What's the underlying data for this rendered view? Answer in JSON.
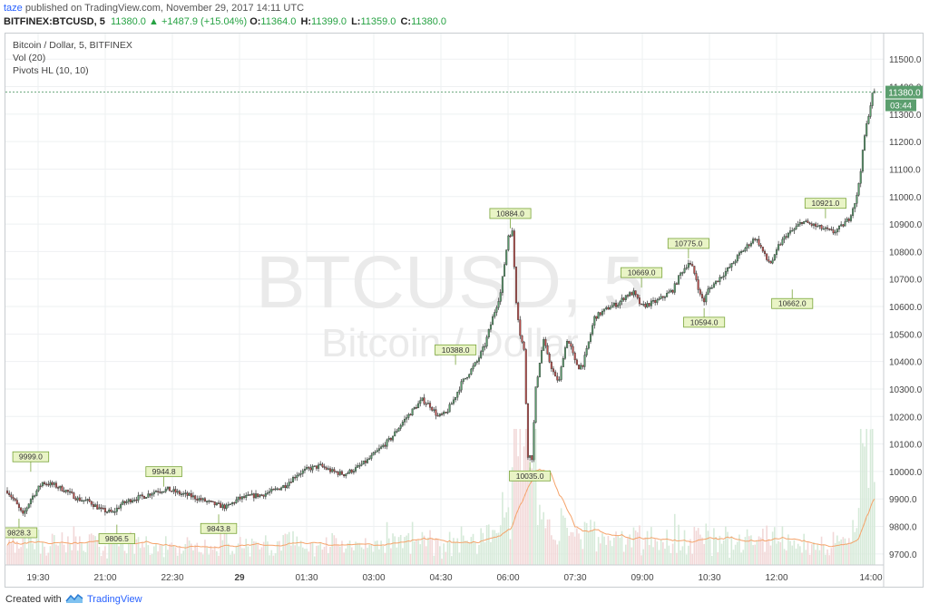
{
  "header": {
    "user": "taze",
    "published_text": "published on TradingView.com, November 29, 2017 14:11 UTC",
    "symbol": "BITFINEX:BTCUSD, 5",
    "last": "11380.0",
    "arrow": "▲",
    "change": "+1487.9 (+15.04%)",
    "o_label": "O:",
    "o_value": "11364.0",
    "h_label": "H:",
    "h_value": "11399.0",
    "l_label": "L:",
    "l_value": "11359.0",
    "c_label": "C:",
    "c_value": "11380.0"
  },
  "legend": {
    "title": "Bitcoin / Dollar, 5, BITFINEX",
    "vol": "Vol (20)",
    "pivots": "Pivots HL (10, 10)"
  },
  "watermark": {
    "main": "BTCUSD, 5",
    "sub": "Bitcoin / Dollar"
  },
  "footer": {
    "created": "Created with",
    "brand": "TradingView"
  },
  "colors": {
    "up": "#5b9e6e",
    "down": "#c0504d",
    "vol_up": "#d6ead9",
    "vol_down": "#f2d8d8",
    "ma": "#f5a36a",
    "label_bg": "#e9f4c6",
    "label_border": "#7aa53a"
  },
  "chart_data": {
    "type": "candlestick",
    "title": "Bitcoin / Dollar, 5, BITFINEX",
    "x_ticks": [
      "19:30",
      "21:00",
      "22:30",
      "29",
      "01:30",
      "03:00",
      "04:30",
      "06:00",
      "07:30",
      "09:00",
      "10:30",
      "12:00",
      "14:00"
    ],
    "y_ticks": [
      9700,
      9800,
      9900,
      10000,
      10100,
      10200,
      10300,
      10400,
      10500,
      10600,
      10700,
      10800,
      10900,
      11000,
      11100,
      11200,
      11300,
      11400,
      11500
    ],
    "y_tick_labels": [
      "9700.0",
      "9800.0",
      "9900.0",
      "10000.0",
      "10100.0",
      "10200.0",
      "10300.0",
      "10400.0",
      "10500.0",
      "10600.0",
      "10700.0",
      "10800.0",
      "10900.0",
      "11000.0",
      "11100.0",
      "11200.0",
      "11300.0",
      "11400.0",
      "11500.0"
    ],
    "ylim": [
      9660,
      11560
    ],
    "last_price": 11380.0,
    "last_price_label": "11380.0",
    "countdown_label": "03:44",
    "close_path": [
      [
        0,
        9930
      ],
      [
        4,
        9890
      ],
      [
        8,
        9840
      ],
      [
        12,
        9900
      ],
      [
        18,
        9960
      ],
      [
        24,
        9950
      ],
      [
        30,
        9930
      ],
      [
        36,
        9900
      ],
      [
        42,
        9890
      ],
      [
        48,
        9860
      ],
      [
        54,
        9850
      ],
      [
        58,
        9880
      ],
      [
        64,
        9900
      ],
      [
        70,
        9910
      ],
      [
        76,
        9930
      ],
      [
        82,
        9935
      ],
      [
        88,
        9920
      ],
      [
        94,
        9910
      ],
      [
        100,
        9895
      ],
      [
        106,
        9880
      ],
      [
        112,
        9870
      ],
      [
        118,
        9900
      ],
      [
        124,
        9910
      ],
      [
        130,
        9915
      ],
      [
        136,
        9930
      ],
      [
        142,
        9950
      ],
      [
        148,
        9990
      ],
      [
        154,
        10010
      ],
      [
        160,
        10020
      ],
      [
        166,
        10000
      ],
      [
        172,
        9990
      ],
      [
        178,
        10010
      ],
      [
        184,
        10040
      ],
      [
        190,
        10080
      ],
      [
        196,
        10120
      ],
      [
        202,
        10180
      ],
      [
        208,
        10230
      ],
      [
        212,
        10260
      ],
      [
        216,
        10240
      ],
      [
        220,
        10200
      ],
      [
        224,
        10210
      ],
      [
        228,
        10260
      ],
      [
        232,
        10320
      ],
      [
        236,
        10360
      ],
      [
        240,
        10400
      ],
      [
        244,
        10460
      ],
      [
        248,
        10560
      ],
      [
        252,
        10650
      ],
      [
        256,
        10860
      ],
      [
        258,
        10870
      ],
      [
        260,
        10620
      ],
      [
        262,
        10500
      ],
      [
        264,
        10440
      ],
      [
        266,
        10060
      ],
      [
        268,
        10050
      ],
      [
        270,
        10300
      ],
      [
        272,
        10400
      ],
      [
        274,
        10480
      ],
      [
        276,
        10420
      ],
      [
        278,
        10380
      ],
      [
        280,
        10340
      ],
      [
        282,
        10330
      ],
      [
        284,
        10420
      ],
      [
        286,
        10480
      ],
      [
        288,
        10450
      ],
      [
        290,
        10400
      ],
      [
        292,
        10380
      ],
      [
        294,
        10390
      ],
      [
        296,
        10440
      ],
      [
        298,
        10500
      ],
      [
        300,
        10560
      ],
      [
        304,
        10580
      ],
      [
        308,
        10600
      ],
      [
        312,
        10610
      ],
      [
        316,
        10640
      ],
      [
        320,
        10650
      ],
      [
        324,
        10600
      ],
      [
        328,
        10610
      ],
      [
        332,
        10620
      ],
      [
        336,
        10640
      ],
      [
        340,
        10660
      ],
      [
        344,
        10720
      ],
      [
        348,
        10760
      ],
      [
        350,
        10740
      ],
      [
        352,
        10700
      ],
      [
        354,
        10640
      ],
      [
        356,
        10620
      ],
      [
        358,
        10660
      ],
      [
        362,
        10690
      ],
      [
        366,
        10720
      ],
      [
        370,
        10750
      ],
      [
        374,
        10790
      ],
      [
        378,
        10820
      ],
      [
        382,
        10850
      ],
      [
        384,
        10830
      ],
      [
        386,
        10800
      ],
      [
        388,
        10770
      ],
      [
        390,
        10760
      ],
      [
        392,
        10780
      ],
      [
        394,
        10820
      ],
      [
        398,
        10860
      ],
      [
        402,
        10880
      ],
      [
        406,
        10910
      ],
      [
        410,
        10900
      ],
      [
        414,
        10890
      ],
      [
        418,
        10880
      ],
      [
        422,
        10870
      ],
      [
        426,
        10890
      ],
      [
        430,
        10920
      ],
      [
        434,
        11000
      ],
      [
        436,
        11100
      ],
      [
        438,
        11220
      ],
      [
        440,
        11300
      ],
      [
        442,
        11370
      ],
      [
        443,
        11380
      ]
    ],
    "candle_count": 444,
    "pivot_labels": [
      {
        "text": "9999.0",
        "index": 12,
        "price": 9999.0,
        "type": "high"
      },
      {
        "text": "9828.3",
        "index": 6,
        "price": 9828.3,
        "type": "low"
      },
      {
        "text": "9806.5",
        "index": 56,
        "price": 9806.5,
        "type": "low"
      },
      {
        "text": "9944.8",
        "index": 80,
        "price": 9944.8,
        "type": "high"
      },
      {
        "text": "9843.8",
        "index": 108,
        "price": 9843.8,
        "type": "low"
      },
      {
        "text": "10388.0",
        "index": 229,
        "price": 10388.0,
        "type": "high"
      },
      {
        "text": "10884.0",
        "index": 257,
        "price": 10884.0,
        "type": "high"
      },
      {
        "text": "10035.0",
        "index": 267,
        "price": 10035.0,
        "type": "low"
      },
      {
        "text": "10669.0",
        "index": 324,
        "price": 10669.0,
        "type": "high"
      },
      {
        "text": "10775.0",
        "index": 348,
        "price": 10775.0,
        "type": "high"
      },
      {
        "text": "10594.0",
        "index": 356,
        "price": 10594.0,
        "type": "low"
      },
      {
        "text": "10662.0",
        "index": 401,
        "price": 10662.0,
        "type": "low"
      },
      {
        "text": "10921.0",
        "index": 418,
        "price": 10921.0,
        "type": "high"
      }
    ],
    "grid": true,
    "volume_panel": true
  }
}
